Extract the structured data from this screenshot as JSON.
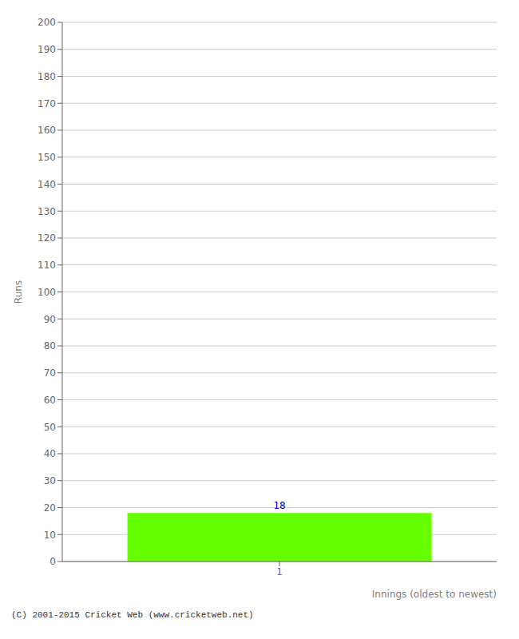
{
  "chart_data": {
    "type": "bar",
    "categories": [
      "1"
    ],
    "values": [
      18
    ],
    "color": "#66ff00",
    "xlabel": "Innings (oldest to newest)",
    "ylabel": "Runs",
    "ylim": [
      0,
      200
    ],
    "yticks": [
      0,
      10,
      20,
      30,
      40,
      50,
      60,
      70,
      80,
      90,
      100,
      110,
      120,
      130,
      140,
      150,
      160,
      170,
      180,
      190,
      200
    ],
    "grid": true,
    "data_labels": true,
    "footer": "(C) 2001-2015 Cricket Web (www.cricketweb.net)"
  }
}
